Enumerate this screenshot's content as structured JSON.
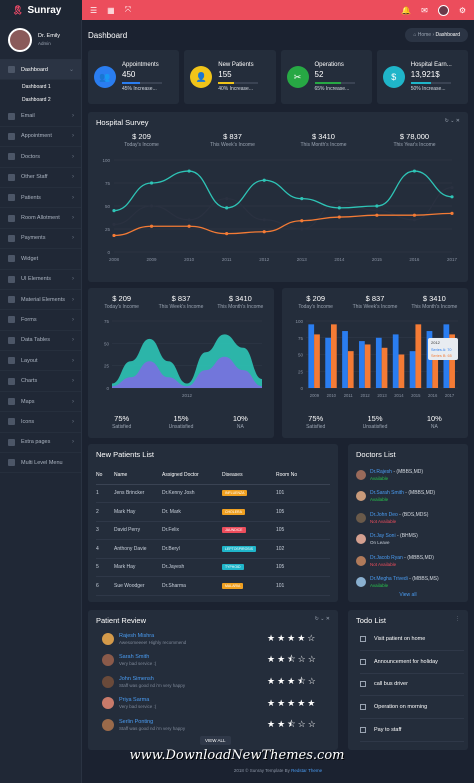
{
  "brand": {
    "name": "Sunray"
  },
  "profile": {
    "name": "Dr. Emily",
    "role": "Admin"
  },
  "page": {
    "title": "Dashboard",
    "crumb_home": "Home",
    "crumb_current": "Dashboard"
  },
  "sidebar": {
    "items": [
      {
        "label": "Dashboard",
        "active": true,
        "sub": [
          "Dashboard 1",
          "Dashboard 2"
        ]
      },
      {
        "label": "Email"
      },
      {
        "label": "Appointment"
      },
      {
        "label": "Doctors"
      },
      {
        "label": "Other Staff"
      },
      {
        "label": "Patients"
      },
      {
        "label": "Room Allotment"
      },
      {
        "label": "Payments"
      },
      {
        "label": "Widget"
      },
      {
        "label": "UI Elements"
      },
      {
        "label": "Material Elements"
      },
      {
        "label": "Forms"
      },
      {
        "label": "Data Tables"
      },
      {
        "label": "Layout"
      },
      {
        "label": "Charts"
      },
      {
        "label": "Maps"
      },
      {
        "label": "Icons"
      },
      {
        "label": "Extra pages"
      },
      {
        "label": "Multi Level Menu"
      }
    ]
  },
  "stats": [
    {
      "title": "Appointments",
      "value": "450",
      "increase": "45% Increase...",
      "color": "#2a7df0",
      "bar": 0.45
    },
    {
      "title": "New Patients",
      "value": "155",
      "increase": "40% Increase...",
      "color": "#f0c419",
      "bar": 0.4
    },
    {
      "title": "Operations",
      "value": "52",
      "increase": "65% Increase...",
      "color": "#27a844",
      "bar": 0.65
    },
    {
      "title": "Hospital Earn...",
      "value": "13,921$",
      "increase": "50% Increase...",
      "color": "#1fb5c9",
      "bar": 0.5
    }
  ],
  "survey": {
    "title": "Hospital Survey",
    "kpis": [
      {
        "value": "$ 209",
        "label": "Today's Income"
      },
      {
        "value": "$ 837",
        "label": "This Week's Income"
      },
      {
        "value": "$ 3410",
        "label": "This Month's Income"
      },
      {
        "value": "$ 78,000",
        "label": "This Year's Income"
      }
    ]
  },
  "chart_data": [
    {
      "type": "line",
      "x": [
        "2008",
        "2009",
        "2010",
        "2011",
        "2012",
        "2013",
        "2014",
        "2015",
        "2016",
        "2017"
      ],
      "ylim": [
        0,
        100
      ],
      "yticks": [
        "0",
        "25",
        "50",
        "75",
        "100"
      ],
      "series": [
        {
          "values": [
            45,
            75,
            88,
            48,
            78,
            58,
            48,
            50,
            88,
            60
          ],
          "color": "#2ec4b6"
        },
        {
          "values": [
            18,
            28,
            28,
            20,
            22,
            34,
            38,
            40,
            40,
            42
          ],
          "color": "#f47b35"
        },
        {
          "values": [
            30,
            50,
            35,
            58,
            35,
            25,
            55,
            45,
            35,
            70
          ],
          "color": "#2a3140"
        }
      ]
    },
    {
      "type": "area",
      "x_label": "2012",
      "yticks": [
        "0",
        "25",
        "50",
        "75"
      ],
      "series": [
        {
          "values": [
            5,
            30,
            55,
            30,
            5,
            40,
            60,
            45,
            10
          ],
          "color": "#2ec4b6"
        },
        {
          "values": [
            2,
            12,
            30,
            12,
            2,
            20,
            35,
            20,
            2
          ],
          "color": "#7a6fe0"
        }
      ],
      "kpis": [
        {
          "value": "$ 209",
          "label": "Today's Income"
        },
        {
          "value": "$ 837",
          "label": "This Week's Income"
        },
        {
          "value": "$ 3410",
          "label": "This Month's Income"
        }
      ],
      "footer": [
        {
          "value": "75%",
          "label": "Satisfied"
        },
        {
          "value": "15%",
          "label": "Unsatisfied"
        },
        {
          "value": "10%",
          "label": "NA"
        }
      ]
    },
    {
      "type": "bar",
      "categories": [
        "2009",
        "2010",
        "2011",
        "2012",
        "2013",
        "2014",
        "2015",
        "2016",
        "2017"
      ],
      "ylim": [
        0,
        100
      ],
      "yticks": [
        "0",
        "25",
        "50",
        "75",
        "100"
      ],
      "tooltip": {
        "label": "2012",
        "a": "Series A: 70",
        "b": "Series B: 65"
      },
      "series": [
        {
          "values": [
            95,
            75,
            85,
            70,
            75,
            80,
            55,
            85,
            95
          ],
          "color": "#2a7df0"
        },
        {
          "values": [
            80,
            95,
            55,
            65,
            60,
            50,
            95,
            65,
            80
          ],
          "color": "#f47b35"
        }
      ],
      "kpis": [
        {
          "value": "$ 209",
          "label": "Today's Income"
        },
        {
          "value": "$ 837",
          "label": "This Week's Income"
        },
        {
          "value": "$ 3410",
          "label": "This Month's Income"
        }
      ],
      "footer": [
        {
          "value": "75%",
          "label": "Satisfied"
        },
        {
          "value": "15%",
          "label": "Unsatisfied"
        },
        {
          "value": "10%",
          "label": "NA"
        }
      ]
    }
  ],
  "patients": {
    "title": "New Patients List",
    "headers": [
      "No",
      "Name",
      "Assigned Doctor",
      "Diseases",
      "Room No"
    ],
    "rows": [
      {
        "no": "1",
        "name": "Jens Brincker",
        "doctor": "Dr.Kenny Josh",
        "disease": "INFLUENZA",
        "color": "#f0a020",
        "room": "101"
      },
      {
        "no": "2",
        "name": "Mark Hay",
        "doctor": "Dr. Mark",
        "disease": "CHOLERA",
        "color": "#f0a020",
        "room": "105"
      },
      {
        "no": "3",
        "name": "David Perry",
        "doctor": "Dr.Felix",
        "disease": "JAUNDICE",
        "color": "#ec4d5c",
        "room": "105"
      },
      {
        "no": "4",
        "name": "Anthony Davie",
        "doctor": "Dr.Beryl",
        "disease": "LEPTOSPIROSIS",
        "color": "#1fb5c9",
        "room": "102"
      },
      {
        "no": "5",
        "name": "Mark Hay",
        "doctor": "Dr.Jayesh",
        "disease": "TYPHOID",
        "color": "#1fb5c9",
        "room": "105"
      },
      {
        "no": "6",
        "name": "Sue Woodger",
        "doctor": "Dr.Sharma",
        "disease": "MALARIA",
        "color": "#f0a020",
        "room": "101"
      }
    ]
  },
  "doctors": {
    "title": "Doctors List",
    "view_all": "View all",
    "items": [
      {
        "name": "Dr.Rajesh",
        "deg": "(MBBS,MD)",
        "status": "Available",
        "scolor": "#27c24c",
        "avatar": "#9a6a5a"
      },
      {
        "name": "Dr.Sarah Smith",
        "deg": "(MBBS,MD)",
        "status": "Available",
        "scolor": "#27c24c",
        "avatar": "#c89a7a"
      },
      {
        "name": "Dr.John Deo",
        "deg": "(BDS,MDS)",
        "status": "Not Available",
        "scolor": "#ec4d5c",
        "avatar": "#6a5a4a"
      },
      {
        "name": "Dr.Jay Soni",
        "deg": "(BHMS)",
        "status": "On Leave",
        "scolor": "#c9d1dc",
        "avatar": "#d4a090"
      },
      {
        "name": "Dr.Jacob Ryan",
        "deg": "(MBBS,MD)",
        "status": "Not Available",
        "scolor": "#ec4d5c",
        "avatar": "#b07a5a"
      },
      {
        "name": "Dr.Megha Trivedi",
        "deg": "(MBBS,MS)",
        "status": "Available",
        "scolor": "#27c24c",
        "avatar": "#8ab0d0"
      }
    ]
  },
  "reviews": {
    "title": "Patient Review",
    "view_all": "VIEW ALL",
    "items": [
      {
        "name": "Rajesh Mishra",
        "text": "Awesomeeee! Highly recommend",
        "stars": "★★★★☆",
        "avatar": "#d49a4a"
      },
      {
        "name": "Sarah Smith",
        "text": "Very bad service :(",
        "stars": "★★⯪☆☆",
        "avatar": "#8a5a4a"
      },
      {
        "name": "John Simensh",
        "text": "Staff was good nd i'm very happy",
        "stars": "★★★⯪☆",
        "avatar": "#6a4a3a"
      },
      {
        "name": "Priya Sarma",
        "text": "Very bad service :(",
        "stars": "★★★★★",
        "avatar": "#c87a6a"
      },
      {
        "name": "Serlin Ponting",
        "text": "Staff was good nd i'm very happy",
        "stars": "★★⯪☆☆",
        "avatar": "#9a6a4a"
      }
    ]
  },
  "todo": {
    "title": "Todo List",
    "items": [
      "Visit patient on home",
      "Announcement for holiday",
      "call bus driver",
      "Operation on morning",
      "Pay to staff"
    ]
  },
  "watermark": "www.DownloadNewThemes.com",
  "footer": {
    "text": "2018 © Sunray Template By",
    "link": "Redstar Theme"
  }
}
